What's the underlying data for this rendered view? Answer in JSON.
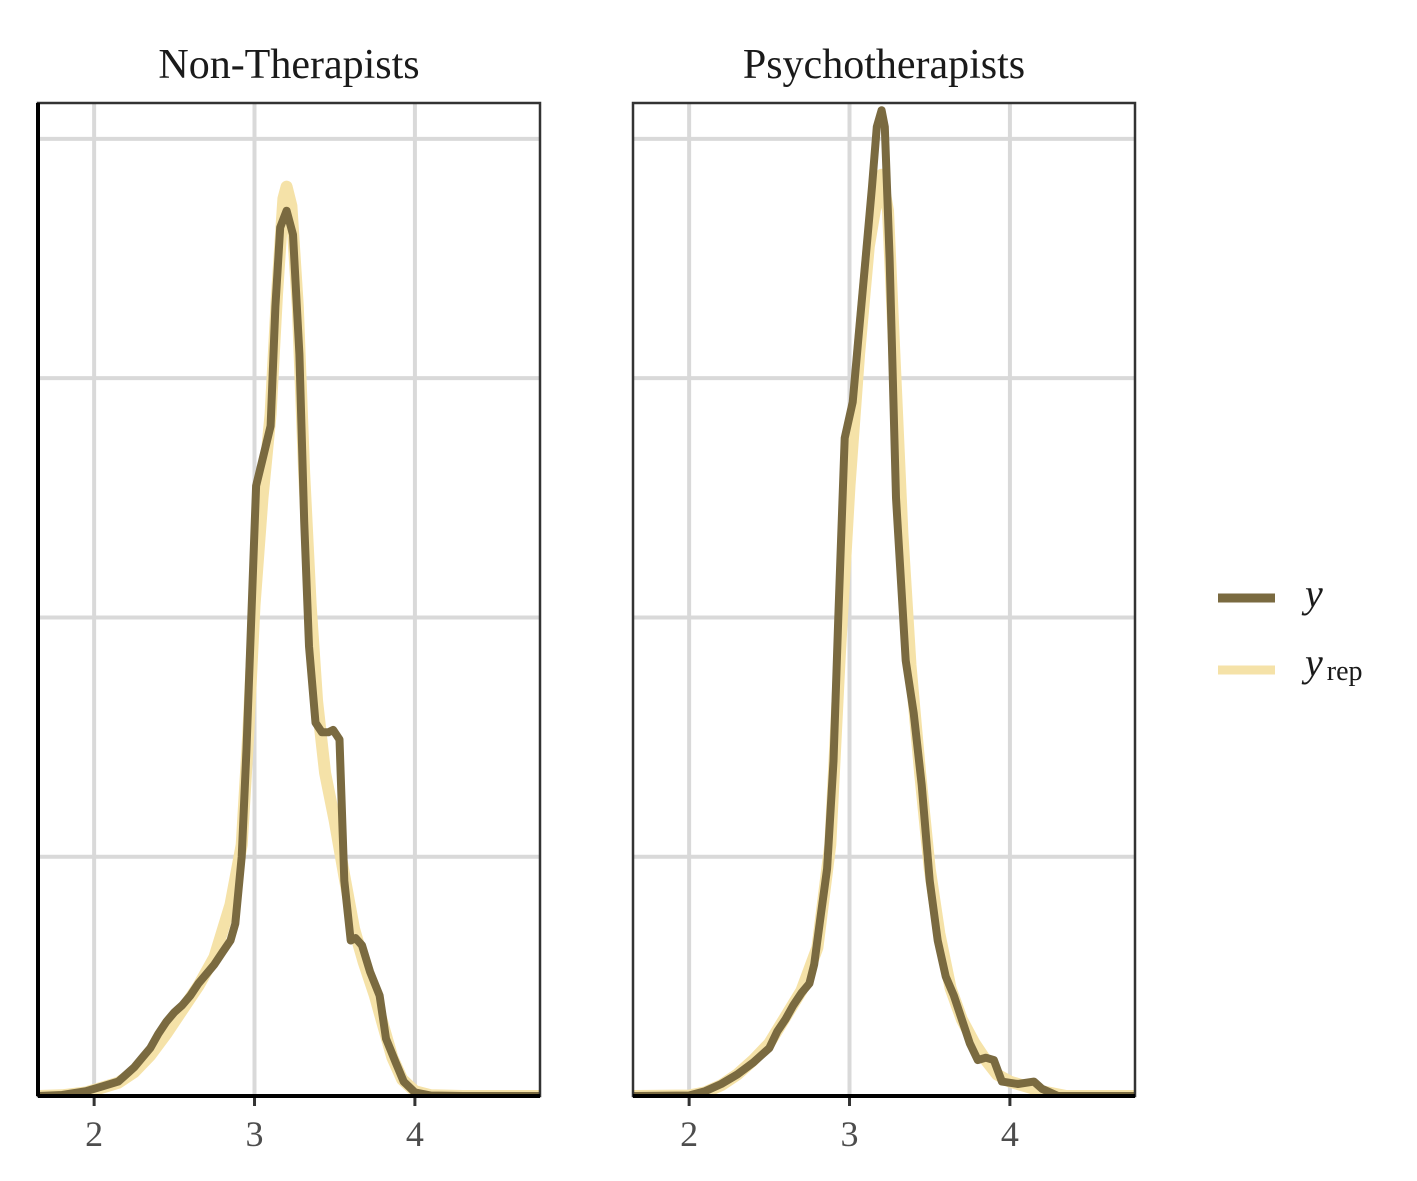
{
  "chart_data": [
    {
      "type": "line",
      "title": "Non-Therapists",
      "xlabel": "",
      "ylabel": "",
      "xlim": [
        1.65,
        4.78
      ],
      "ylim": [
        0,
        4.15
      ],
      "x_ticks": [
        "2",
        "3",
        "4"
      ],
      "y_grid": [
        1,
        2,
        3,
        4
      ],
      "grid": true,
      "series": [
        {
          "name": "y",
          "color": "#7a6a40",
          "points": [
            [
              1.65,
              0.0
            ],
            [
              1.8,
              0.004
            ],
            [
              1.95,
              0.02
            ],
            [
              2.05,
              0.04
            ],
            [
              2.15,
              0.06
            ],
            [
              2.2,
              0.09
            ],
            [
              2.25,
              0.12
            ],
            [
              2.3,
              0.16
            ],
            [
              2.35,
              0.2
            ],
            [
              2.4,
              0.26
            ],
            [
              2.45,
              0.31
            ],
            [
              2.5,
              0.35
            ],
            [
              2.55,
              0.38
            ],
            [
              2.6,
              0.42
            ],
            [
              2.65,
              0.47
            ],
            [
              2.7,
              0.51
            ],
            [
              2.75,
              0.55
            ],
            [
              2.8,
              0.6
            ],
            [
              2.85,
              0.65
            ],
            [
              2.88,
              0.72
            ],
            [
              2.92,
              1.0
            ],
            [
              2.95,
              1.45
            ],
            [
              2.98,
              2.0
            ],
            [
              3.01,
              2.55
            ],
            [
              3.05,
              2.66
            ],
            [
              3.1,
              2.8
            ],
            [
              3.13,
              3.3
            ],
            [
              3.16,
              3.63
            ],
            [
              3.2,
              3.7
            ],
            [
              3.24,
              3.6
            ],
            [
              3.28,
              3.1
            ],
            [
              3.31,
              2.4
            ],
            [
              3.34,
              1.88
            ],
            [
              3.38,
              1.56
            ],
            [
              3.42,
              1.52
            ],
            [
              3.46,
              1.52
            ],
            [
              3.49,
              1.53
            ],
            [
              3.53,
              1.49
            ],
            [
              3.56,
              0.9
            ],
            [
              3.6,
              0.65
            ],
            [
              3.63,
              0.66
            ],
            [
              3.67,
              0.63
            ],
            [
              3.72,
              0.52
            ],
            [
              3.78,
              0.42
            ],
            [
              3.82,
              0.24
            ],
            [
              3.88,
              0.14
            ],
            [
              3.93,
              0.06
            ],
            [
              4.0,
              0.015
            ],
            [
              4.1,
              0.002
            ],
            [
              4.3,
              0.0
            ],
            [
              4.78,
              0.0
            ]
          ]
        },
        {
          "name": "y_rep",
          "color": "#f5e2a8",
          "points": [
            [
              1.65,
              0.0
            ],
            [
              1.8,
              0.003
            ],
            [
              1.95,
              0.015
            ],
            [
              2.05,
              0.035
            ],
            [
              2.15,
              0.055
            ],
            [
              2.25,
              0.1
            ],
            [
              2.35,
              0.17
            ],
            [
              2.45,
              0.26
            ],
            [
              2.55,
              0.36
            ],
            [
              2.65,
              0.46
            ],
            [
              2.75,
              0.58
            ],
            [
              2.85,
              0.8
            ],
            [
              2.92,
              1.05
            ],
            [
              2.96,
              1.5
            ],
            [
              3.0,
              2.05
            ],
            [
              3.05,
              2.5
            ],
            [
              3.1,
              2.85
            ],
            [
              3.14,
              3.35
            ],
            [
              3.18,
              3.75
            ],
            [
              3.2,
              3.8
            ],
            [
              3.23,
              3.72
            ],
            [
              3.27,
              3.3
            ],
            [
              3.31,
              2.6
            ],
            [
              3.35,
              2.05
            ],
            [
              3.39,
              1.65
            ],
            [
              3.44,
              1.35
            ],
            [
              3.5,
              1.15
            ],
            [
              3.56,
              0.92
            ],
            [
              3.62,
              0.7
            ],
            [
              3.68,
              0.56
            ],
            [
              3.75,
              0.42
            ],
            [
              3.8,
              0.3
            ],
            [
              3.86,
              0.16
            ],
            [
              3.92,
              0.07
            ],
            [
              4.0,
              0.02
            ],
            [
              4.1,
              0.003
            ],
            [
              4.3,
              0.0
            ],
            [
              4.78,
              0.0
            ]
          ]
        }
      ]
    },
    {
      "type": "line",
      "title": "Psychotherapists",
      "xlabel": "",
      "ylabel": "",
      "xlim": [
        1.65,
        4.78
      ],
      "ylim": [
        0,
        4.15
      ],
      "x_ticks": [
        "2",
        "3",
        "4"
      ],
      "y_grid": [
        1,
        2,
        3,
        4
      ],
      "grid": true,
      "series": [
        {
          "name": "y",
          "color": "#7a6a40",
          "points": [
            [
              1.65,
              0.0
            ],
            [
              2.0,
              0.002
            ],
            [
              2.1,
              0.02
            ],
            [
              2.2,
              0.05
            ],
            [
              2.3,
              0.09
            ],
            [
              2.4,
              0.14
            ],
            [
              2.5,
              0.2
            ],
            [
              2.55,
              0.27
            ],
            [
              2.6,
              0.32
            ],
            [
              2.65,
              0.38
            ],
            [
              2.7,
              0.43
            ],
            [
              2.75,
              0.47
            ],
            [
              2.78,
              0.55
            ],
            [
              2.82,
              0.75
            ],
            [
              2.86,
              0.95
            ],
            [
              2.9,
              1.4
            ],
            [
              2.93,
              2.0
            ],
            [
              2.97,
              2.75
            ],
            [
              3.02,
              2.9
            ],
            [
              3.06,
              3.2
            ],
            [
              3.1,
              3.5
            ],
            [
              3.14,
              3.8
            ],
            [
              3.17,
              4.05
            ],
            [
              3.2,
              4.12
            ],
            [
              3.22,
              4.05
            ],
            [
              3.25,
              3.5
            ],
            [
              3.29,
              2.5
            ],
            [
              3.35,
              1.82
            ],
            [
              3.4,
              1.6
            ],
            [
              3.45,
              1.3
            ],
            [
              3.5,
              0.9
            ],
            [
              3.55,
              0.65
            ],
            [
              3.6,
              0.5
            ],
            [
              3.65,
              0.42
            ],
            [
              3.7,
              0.32
            ],
            [
              3.75,
              0.22
            ],
            [
              3.8,
              0.15
            ],
            [
              3.85,
              0.16
            ],
            [
              3.9,
              0.15
            ],
            [
              3.95,
              0.06
            ],
            [
              4.05,
              0.05
            ],
            [
              4.15,
              0.06
            ],
            [
              4.2,
              0.03
            ],
            [
              4.3,
              0.0
            ],
            [
              4.78,
              0.0
            ]
          ]
        },
        {
          "name": "y_rep",
          "color": "#f5e2a8",
          "points": [
            [
              1.65,
              0.0
            ],
            [
              2.0,
              0.002
            ],
            [
              2.1,
              0.015
            ],
            [
              2.2,
              0.045
            ],
            [
              2.3,
              0.09
            ],
            [
              2.4,
              0.15
            ],
            [
              2.5,
              0.22
            ],
            [
              2.6,
              0.33
            ],
            [
              2.7,
              0.44
            ],
            [
              2.8,
              0.62
            ],
            [
              2.88,
              1.05
            ],
            [
              2.94,
              1.85
            ],
            [
              3.0,
              2.55
            ],
            [
              3.06,
              3.1
            ],
            [
              3.12,
              3.55
            ],
            [
              3.17,
              3.75
            ],
            [
              3.2,
              3.85
            ],
            [
              3.24,
              3.7
            ],
            [
              3.28,
              3.1
            ],
            [
              3.33,
              2.35
            ],
            [
              3.38,
              1.8
            ],
            [
              3.44,
              1.35
            ],
            [
              3.5,
              0.95
            ],
            [
              3.56,
              0.68
            ],
            [
              3.63,
              0.45
            ],
            [
              3.7,
              0.32
            ],
            [
              3.78,
              0.22
            ],
            [
              3.85,
              0.15
            ],
            [
              3.92,
              0.09
            ],
            [
              4.0,
              0.06
            ],
            [
              4.1,
              0.04
            ],
            [
              4.2,
              0.02
            ],
            [
              4.35,
              0.0
            ],
            [
              4.78,
              0.0
            ]
          ]
        }
      ]
    }
  ],
  "legend": {
    "items": [
      {
        "label": "y",
        "subscript": "",
        "color": "#7a6a40"
      },
      {
        "label": "y",
        "subscript": "rep",
        "color": "#f5e2a8"
      }
    ]
  }
}
